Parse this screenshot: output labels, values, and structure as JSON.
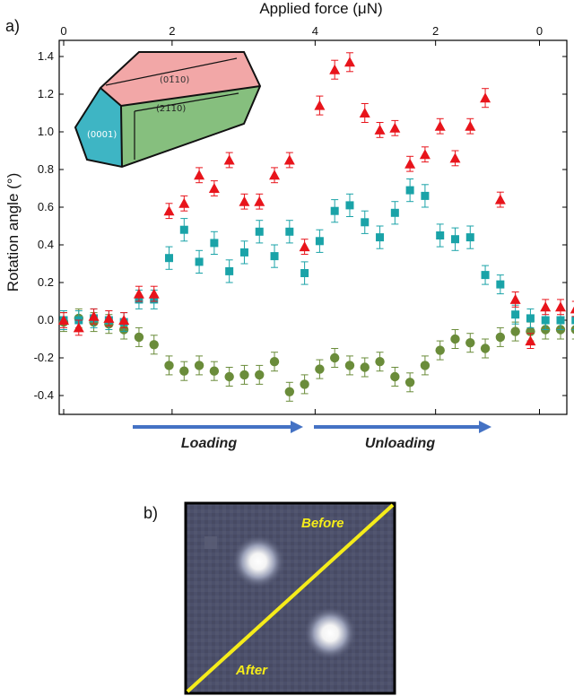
{
  "panel_a_label": "a)",
  "panel_b_label": "b)",
  "chart_data": {
    "type": "scatter",
    "title": "",
    "xlabel": "Applied force (μN)",
    "ylabel": "Rotation angle (°)",
    "x_tick_labels": [
      "0",
      "2",
      "4",
      "2",
      "0"
    ],
    "ylim": [
      -0.5,
      1.45
    ],
    "y_ticks": [
      -0.4,
      -0.2,
      0.0,
      0.2,
      0.4,
      0.6,
      0.8,
      1.0,
      1.2,
      1.4
    ],
    "y_tick_labels": [
      "-0.4",
      "-0.2",
      "0.0",
      "0.2",
      "0.4",
      "0.6",
      "0.8",
      "1.0",
      "1.2",
      "1.4"
    ],
    "x_note": "force axis runs 0 → 4 μN (loading) then back 4 → 0 μN (unloading); points indexed by measurement step 0–33",
    "xlim": [
      0,
      34
    ],
    "x_tick_positions": [
      0,
      7.2,
      16.7,
      24.7,
      31.6
    ],
    "grid": false,
    "legend": "none",
    "series": [
      {
        "marker": "triangle",
        "color": "#e8141b",
        "values": [
          0.0,
          -0.04,
          0.02,
          0.01,
          0.0,
          0.14,
          0.14,
          0.58,
          0.62,
          0.77,
          0.7,
          0.85,
          0.63,
          0.63,
          0.77,
          0.85,
          0.39,
          1.14,
          1.33,
          1.37,
          1.1,
          1.01,
          1.02,
          0.83,
          0.88,
          1.03,
          0.86,
          1.03,
          1.18,
          0.64,
          0.11,
          -0.11,
          0.07,
          0.07,
          0.06
        ],
        "errors": [
          0.04,
          0.04,
          0.04,
          0.04,
          0.04,
          0.04,
          0.04,
          0.04,
          0.04,
          0.04,
          0.04,
          0.04,
          0.04,
          0.04,
          0.04,
          0.04,
          0.04,
          0.05,
          0.05,
          0.05,
          0.05,
          0.04,
          0.04,
          0.04,
          0.04,
          0.04,
          0.04,
          0.04,
          0.05,
          0.04,
          0.04,
          0.04,
          0.04,
          0.04,
          0.04
        ]
      },
      {
        "marker": "square",
        "color": "#1aa3a8",
        "values": [
          0.0,
          0.0,
          0.01,
          0.0,
          -0.01,
          0.11,
          0.11,
          0.33,
          0.48,
          0.31,
          0.41,
          0.26,
          0.36,
          0.47,
          0.34,
          0.47,
          0.25,
          0.42,
          0.58,
          0.61,
          0.52,
          0.44,
          0.57,
          0.69,
          0.66,
          0.45,
          0.43,
          0.44,
          0.24,
          0.19,
          0.03,
          0.01,
          0.0,
          0.0,
          0.0
        ],
        "errors": [
          0.05,
          0.05,
          0.05,
          0.05,
          0.05,
          0.05,
          0.05,
          0.06,
          0.06,
          0.06,
          0.06,
          0.06,
          0.06,
          0.06,
          0.06,
          0.06,
          0.06,
          0.06,
          0.06,
          0.06,
          0.06,
          0.06,
          0.06,
          0.06,
          0.06,
          0.06,
          0.06,
          0.06,
          0.05,
          0.05,
          0.05,
          0.05,
          0.05,
          0.05,
          0.05
        ]
      },
      {
        "marker": "circle",
        "color": "#6a8c3a",
        "values": [
          -0.01,
          0.01,
          -0.01,
          -0.02,
          -0.05,
          -0.09,
          -0.13,
          -0.24,
          -0.27,
          -0.24,
          -0.27,
          -0.3,
          -0.29,
          -0.29,
          -0.22,
          -0.38,
          -0.34,
          -0.26,
          -0.2,
          -0.24,
          -0.25,
          -0.22,
          -0.3,
          -0.33,
          -0.24,
          -0.16,
          -0.1,
          -0.12,
          -0.15,
          -0.09,
          -0.06,
          -0.06,
          -0.05,
          -0.05,
          -0.05
        ],
        "errors": [
          0.05,
          0.05,
          0.05,
          0.05,
          0.05,
          0.05,
          0.05,
          0.05,
          0.05,
          0.05,
          0.05,
          0.05,
          0.05,
          0.05,
          0.05,
          0.05,
          0.05,
          0.05,
          0.05,
          0.05,
          0.05,
          0.05,
          0.05,
          0.05,
          0.05,
          0.05,
          0.05,
          0.05,
          0.05,
          0.05,
          0.05,
          0.05,
          0.05,
          0.05,
          0.05
        ]
      }
    ],
    "annotations": {
      "loading_label": "Loading",
      "unloading_label": "Unloading",
      "arrow_color": "#4472c4"
    },
    "crystal_inset": {
      "face_top": "(01̄10)",
      "face_side": "(21̄1̄0)",
      "face_end": "(0001)",
      "colors": {
        "top": "#f2a7a7",
        "side": "#86bf7e",
        "end": "#3eb5c4"
      }
    }
  },
  "image_b": {
    "before_label": "Before",
    "after_label": "After",
    "line_color": "#f5ec1a"
  }
}
